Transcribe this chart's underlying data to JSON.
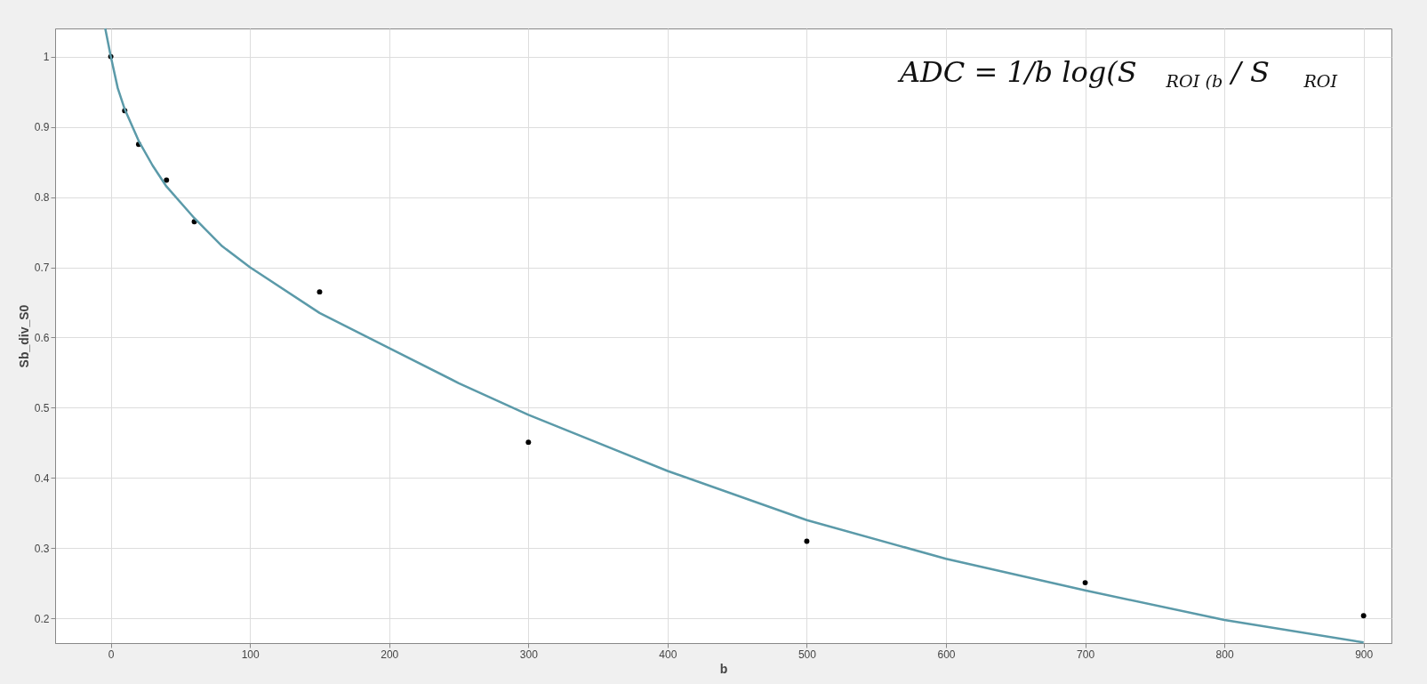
{
  "chart_data": {
    "type": "scatter",
    "xlabel": "b",
    "ylabel": "Sb_div_S0",
    "xlim": [
      -40,
      920
    ],
    "ylim": [
      0.165,
      1.04
    ],
    "xticks": [
      0,
      100,
      200,
      300,
      400,
      500,
      600,
      700,
      800,
      900
    ],
    "yticks": [
      0.2,
      0.3,
      0.4,
      0.5,
      0.6,
      0.7,
      0.8,
      0.9,
      1
    ],
    "grid": true,
    "annotations": [
      "ADC = 1/b log(S$_{ROI (b}$ / S$_{ROI}$"
    ],
    "series": [
      {
        "marker": "circle",
        "color": "#000000",
        "x": [
          0,
          10,
          20,
          40,
          60,
          150,
          300,
          500,
          700,
          900
        ],
        "values": [
          1.0,
          0.923,
          0.875,
          0.824,
          0.765,
          0.665,
          0.451,
          0.31,
          0.251,
          0.204
        ]
      },
      {
        "type": "line",
        "color": "#5b9aa9",
        "x": [
          -4,
          0,
          5,
          10,
          20,
          30,
          40,
          60,
          80,
          100,
          150,
          200,
          250,
          300,
          400,
          500,
          600,
          700,
          800,
          900
        ],
        "values": [
          1.04,
          1.0,
          0.955,
          0.925,
          0.88,
          0.845,
          0.815,
          0.77,
          0.73,
          0.7,
          0.635,
          0.585,
          0.535,
          0.49,
          0.41,
          0.34,
          0.285,
          0.24,
          0.198,
          0.166
        ]
      }
    ]
  }
}
